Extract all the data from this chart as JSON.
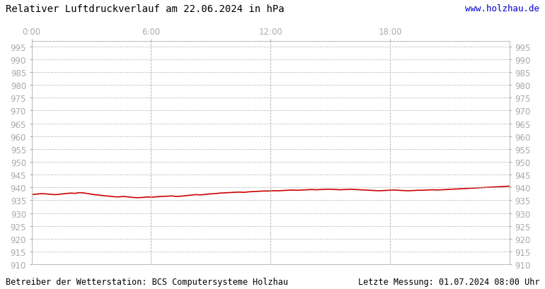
{
  "title": "Relativer Luftdruckverlauf am 22.06.2024 in hPa",
  "url_text": "www.holzhau.de",
  "footer_left": "Betreiber der Wetterstation: BCS Computersysteme Holzhau",
  "footer_right": "Letzte Messung: 01.07.2024 08:00 Uhr",
  "bg_color": "#ffffff",
  "plot_bg_color": "#ffffff",
  "line_color": "#cc0000",
  "grid_color": "#bbbbbb",
  "text_color": "#000000",
  "tick_label_color": "#aaaaaa",
  "url_color": "#0000cc",
  "ylim": [
    910,
    997
  ],
  "ytick_min": 910,
  "ytick_max": 995,
  "ytick_step": 5,
  "xtick_labels": [
    "0:00",
    "6:00",
    "12:00",
    "18:00"
  ],
  "xtick_positions": [
    0.0,
    0.25,
    0.5,
    0.75
  ],
  "pressure_data": [
    937.2,
    937.4,
    937.6,
    937.5,
    937.3,
    937.2,
    937.4,
    937.6,
    937.8,
    937.7,
    938.0,
    937.8,
    937.5,
    937.2,
    937.0,
    936.8,
    936.6,
    936.4,
    936.3,
    936.5,
    936.3,
    936.1,
    936.0,
    936.1,
    936.3,
    936.2,
    936.4,
    936.5,
    936.6,
    936.7,
    936.5,
    936.6,
    936.8,
    937.0,
    937.2,
    937.1,
    937.3,
    937.5,
    937.6,
    937.8,
    937.9,
    938.0,
    938.1,
    938.2,
    938.1,
    938.3,
    938.4,
    938.5,
    938.6,
    938.6,
    938.7,
    938.7,
    938.8,
    938.9,
    939.0,
    938.9,
    939.0,
    939.1,
    939.2,
    939.1,
    939.2,
    939.3,
    939.3,
    939.2,
    939.1,
    939.2,
    939.3,
    939.2,
    939.1,
    939.0,
    938.9,
    938.8,
    938.7,
    938.8,
    938.9,
    939.0,
    938.9,
    938.8,
    938.7,
    938.8,
    938.9,
    938.9,
    939.0,
    939.1,
    939.0,
    939.1,
    939.2,
    939.3,
    939.4,
    939.5,
    939.6,
    939.7,
    939.8,
    939.9,
    940.0,
    940.1,
    940.2,
    940.3,
    940.4,
    940.5
  ],
  "title_fontsize": 10,
  "tick_fontsize": 8.5,
  "footer_fontsize": 8.5,
  "url_fontsize": 9,
  "line_width": 1.2
}
